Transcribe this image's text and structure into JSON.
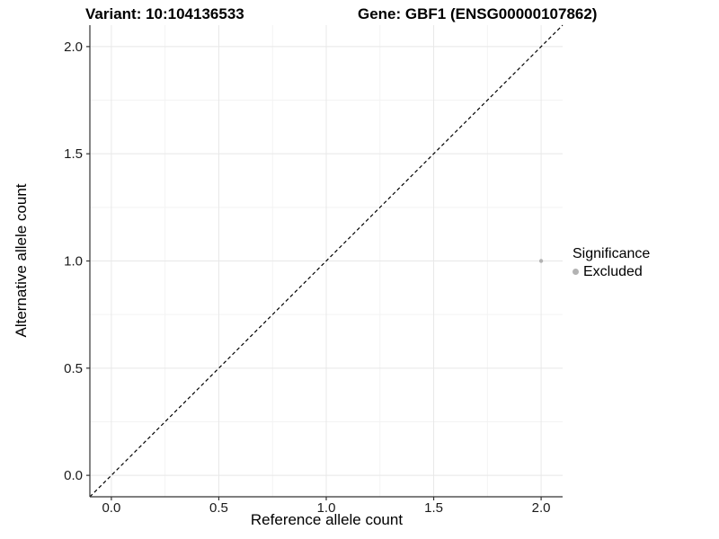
{
  "chart_data": {
    "type": "scatter",
    "title_left": "Variant: 10:104136533",
    "title_right": "Gene: GBF1 (ENSG00000107862)",
    "xlabel": "Reference allele count",
    "ylabel": "Alternative allele count",
    "xlim": [
      -0.1,
      2.1
    ],
    "ylim": [
      -0.1,
      2.1
    ],
    "x_ticks": [
      0.0,
      0.5,
      1.0,
      1.5,
      2.0
    ],
    "y_ticks": [
      0.0,
      0.5,
      1.0,
      1.5,
      2.0
    ],
    "x_tick_labels": [
      "0.0",
      "0.5",
      "1.0",
      "1.5",
      "2.0"
    ],
    "y_tick_labels": [
      "0.0",
      "0.5",
      "1.0",
      "1.5",
      "2.0"
    ],
    "x_minor_ticks": [
      0.25,
      0.75,
      1.25,
      1.75
    ],
    "y_minor_ticks": [
      0.25,
      0.75,
      1.25,
      1.75
    ],
    "grid": true,
    "reference_line": {
      "slope": 1,
      "intercept": 0,
      "style": "dashed",
      "color": "#000000"
    },
    "points": [
      {
        "x": 2.0,
        "y": 1.0,
        "series": "Excluded",
        "color": "#b3b3b3",
        "radius": 2.2
      }
    ],
    "legend": {
      "position": "right",
      "title": "Significance",
      "items": [
        {
          "label": "Excluded",
          "color": "#b3b3b3",
          "marker": "circle"
        }
      ]
    },
    "panel_background": "#ffffff",
    "grid_major_color": "#e8e8e8",
    "grid_minor_color": "#f3f3f3",
    "axis_line_color": "#333333",
    "tick_color": "#333333",
    "tick_label_color": "#1a1a1a",
    "text_color": "#000000"
  }
}
